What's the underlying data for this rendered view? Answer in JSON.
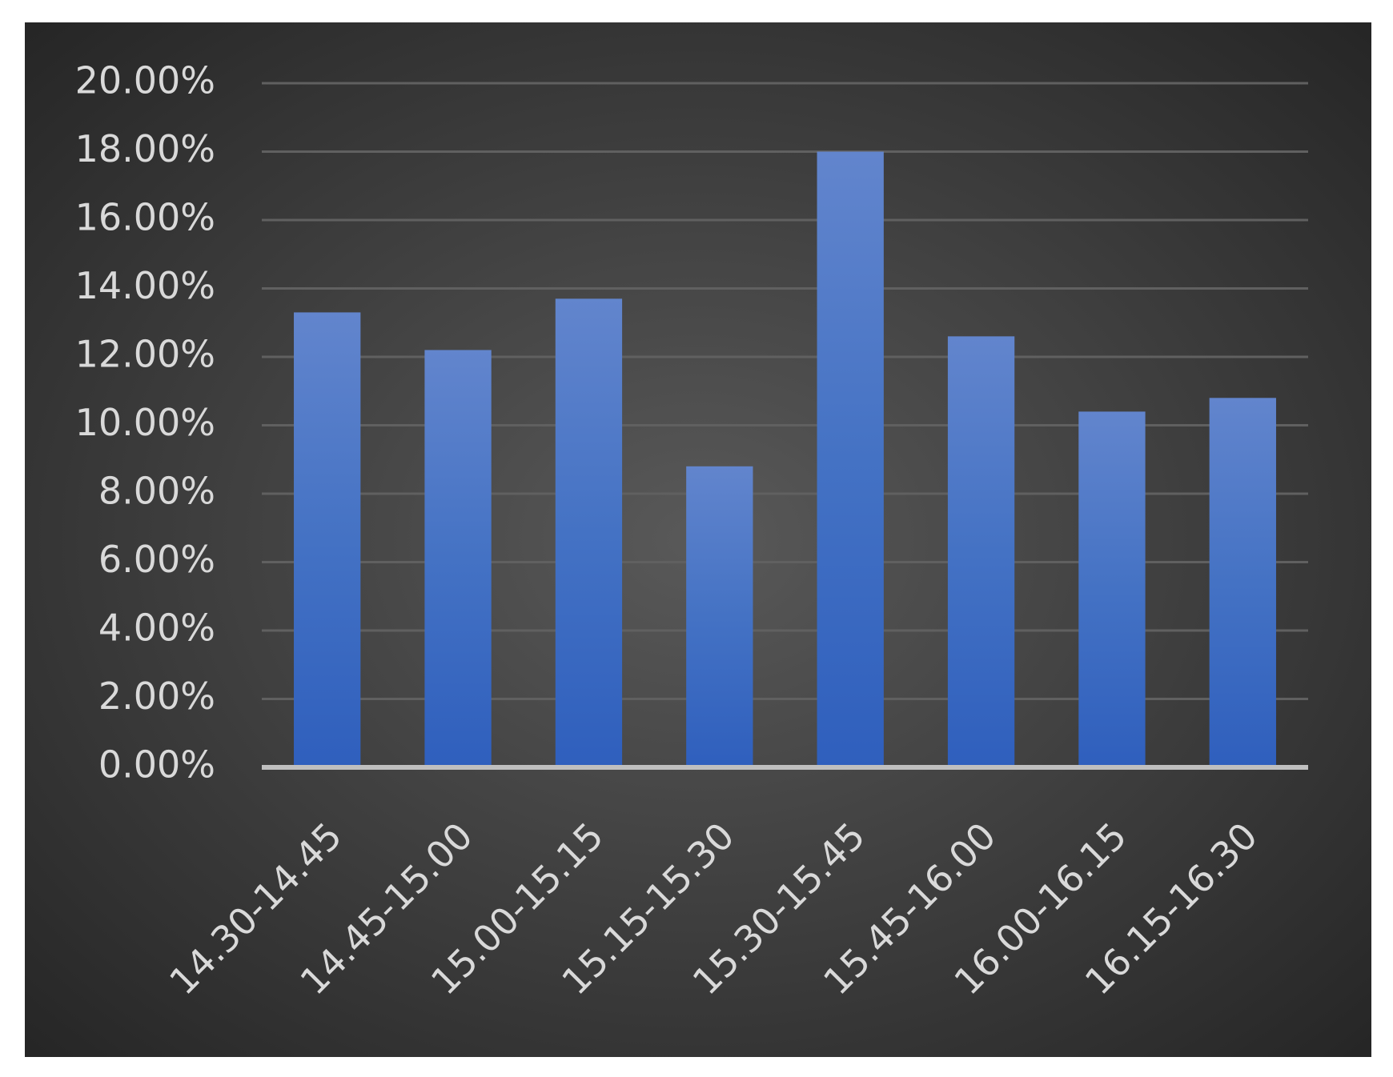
{
  "chart_data": {
    "type": "bar",
    "categories": [
      "14.30-14.45",
      "14.45-15.00",
      "15.00-15.15",
      "15.15-15.30",
      "15.30-15.45",
      "15.45-16.00",
      "16.00-16.15",
      "16.15-16.30"
    ],
    "values": [
      13.3,
      12.2,
      13.7,
      8.8,
      18.0,
      12.6,
      10.4,
      10.8
    ],
    "color": "#4472c4",
    "ylim": [
      0,
      20
    ],
    "yticks": [
      {
        "value": 0,
        "label": "0.00%"
      },
      {
        "value": 2,
        "label": "2.00%"
      },
      {
        "value": 4,
        "label": "4.00%"
      },
      {
        "value": 6,
        "label": "6.00%"
      },
      {
        "value": 8,
        "label": "8.00%"
      },
      {
        "value": 10,
        "label": "10.00%"
      },
      {
        "value": 12,
        "label": "12.00%"
      },
      {
        "value": 14,
        "label": "14.00%"
      },
      {
        "value": 16,
        "label": "16.00%"
      },
      {
        "value": 18,
        "label": "18.00%"
      },
      {
        "value": 20,
        "label": "20.00%"
      }
    ],
    "grid": true
  }
}
